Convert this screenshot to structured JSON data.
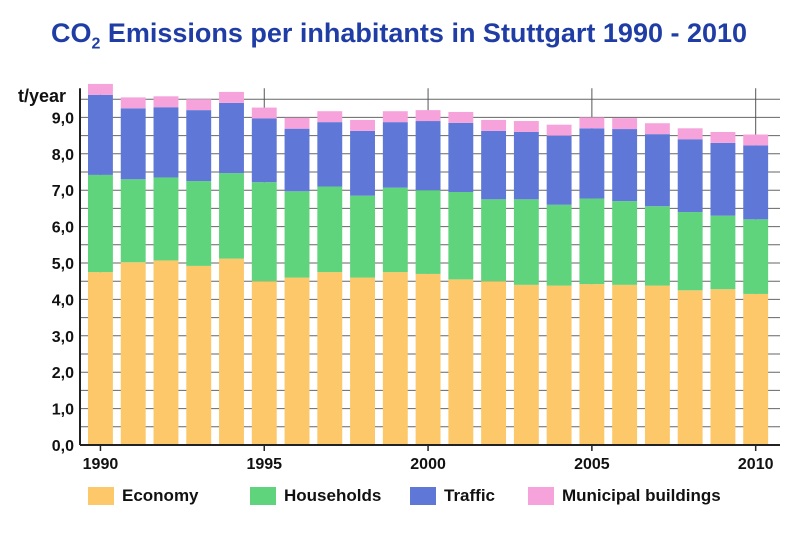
{
  "title": {
    "prefix": "CO",
    "subscript": "2",
    "suffix": " Emissions per inhabitants in Stuttgart 1990 - 2010"
  },
  "chart_data": {
    "type": "bar",
    "stacked": true,
    "ylabel": "t/year",
    "ylim": [
      0,
      10
    ],
    "yticks": [
      "0,0",
      "1,0",
      "2,0",
      "3,0",
      "4,0",
      "5,0",
      "6,0",
      "7,0",
      "8,0",
      "9,0"
    ],
    "xtick_labels": [
      "1990",
      "1995",
      "2000",
      "2005",
      "2010"
    ],
    "grid": true,
    "legend_position": "bottom",
    "categories": [
      1990,
      1991,
      1992,
      1993,
      1994,
      1995,
      1996,
      1997,
      1998,
      1999,
      2000,
      2001,
      2002,
      2003,
      2004,
      2005,
      2006,
      2007,
      2008,
      2009,
      2010
    ],
    "series": [
      {
        "name": "Economy",
        "color": "#fcc86a",
        "values": [
          4.75,
          5.02,
          5.07,
          4.92,
          5.12,
          4.5,
          4.6,
          4.75,
          4.6,
          4.75,
          4.7,
          4.55,
          4.5,
          4.4,
          4.38,
          4.42,
          4.4,
          4.38,
          4.25,
          4.28,
          4.15
        ]
      },
      {
        "name": "Households",
        "color": "#5fd47c",
        "values": [
          2.67,
          2.28,
          2.28,
          2.33,
          2.35,
          2.72,
          2.37,
          2.35,
          2.25,
          2.32,
          2.3,
          2.4,
          2.25,
          2.35,
          2.22,
          2.35,
          2.3,
          2.18,
          2.15,
          2.02,
          2.05
        ]
      },
      {
        "name": "Traffic",
        "color": "#5f78d8",
        "values": [
          2.2,
          1.95,
          1.93,
          1.95,
          1.93,
          1.75,
          1.72,
          1.77,
          1.78,
          1.8,
          1.9,
          1.9,
          1.88,
          1.85,
          1.9,
          1.93,
          1.98,
          1.98,
          2.0,
          2.0,
          2.03
        ]
      },
      {
        "name": "Municipal buildings",
        "color": "#f6a3dc",
        "values": [
          0.3,
          0.3,
          0.3,
          0.3,
          0.3,
          0.3,
          0.3,
          0.3,
          0.3,
          0.3,
          0.3,
          0.3,
          0.3,
          0.3,
          0.3,
          0.3,
          0.3,
          0.3,
          0.3,
          0.3,
          0.3
        ]
      }
    ]
  }
}
